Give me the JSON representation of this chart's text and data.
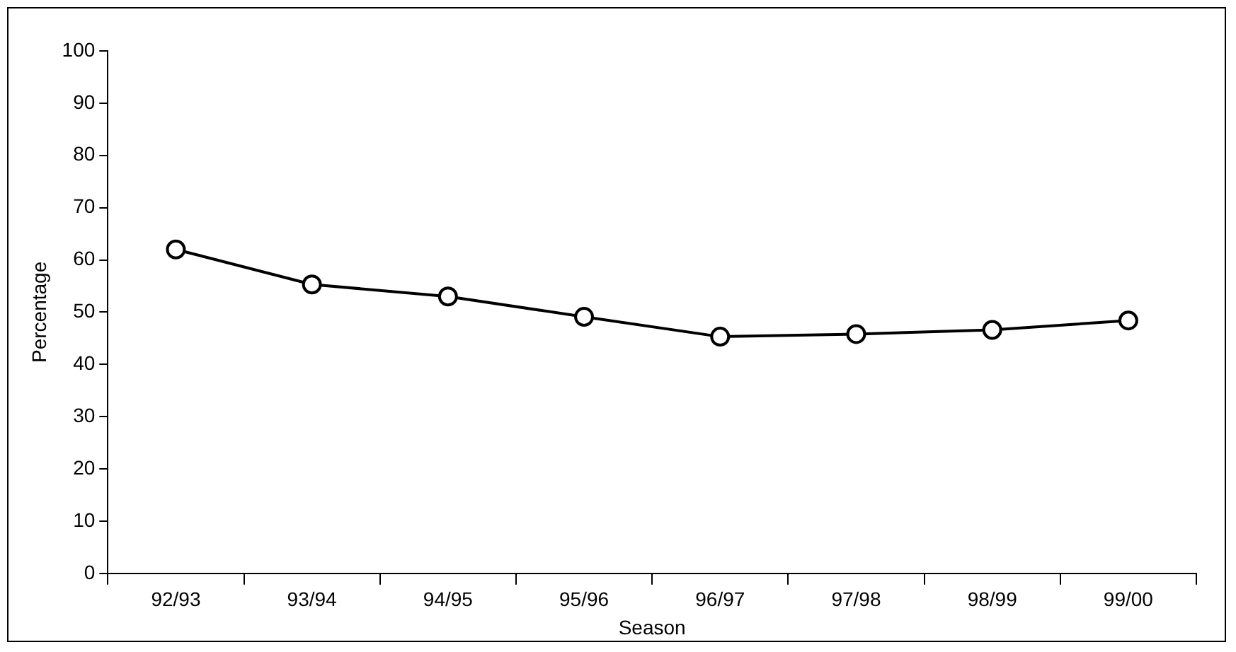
{
  "chart_data": {
    "type": "line",
    "xlabel": "Season",
    "ylabel": "Percentage",
    "categories": [
      "92/93",
      "93/94",
      "94/95",
      "95/96",
      "96/97",
      "97/98",
      "98/99",
      "99/00"
    ],
    "series": [
      {
        "color": "#000000",
        "values": [
          62,
          55.3,
          53,
          49.1,
          45.3,
          45.8,
          46.6,
          48.4
        ]
      }
    ],
    "ylim": [
      0,
      100
    ],
    "yticks": [
      0,
      10,
      20,
      30,
      40,
      50,
      60,
      70,
      80,
      90,
      100
    ],
    "marker": "circle",
    "line_style": "solid",
    "grid": false,
    "legend": false
  }
}
